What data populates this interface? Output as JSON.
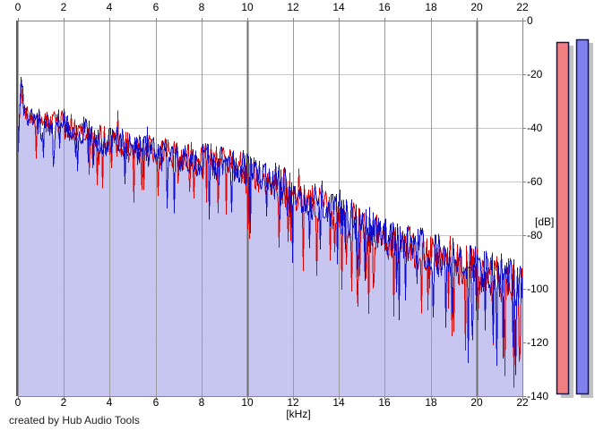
{
  "watermark": "created by Hub Audio Tools",
  "axes": {
    "freq": {
      "unit_label": "[kHz]",
      "min": 0,
      "max": 22,
      "ticks": [
        0,
        2,
        4,
        6,
        8,
        10,
        12,
        14,
        16,
        18,
        20,
        22
      ]
    },
    "level": {
      "unit_label": "[dB]",
      "min": -140,
      "max": 0,
      "ticks": [
        0,
        -20,
        -40,
        -60,
        -80,
        -100,
        -120,
        -140
      ]
    }
  },
  "colors": {
    "fill": "#c6c6f0",
    "trace_left": "#d80000",
    "trace_right": "#0a0ac8",
    "grid_minor_v": "#9a9a9a",
    "grid_major_v": "#6e6e6e",
    "grid_h": "#c8c8c8",
    "frame": "#858585",
    "frame_left": "#5a5a5a",
    "meter_shadow": "#c2c2c2",
    "meter_border": "#16164e",
    "text": "#000000"
  },
  "chart_data": {
    "type": "line",
    "title": "",
    "xlabel": "[kHz]",
    "ylabel": "[dB]",
    "xlim": [
      0,
      22
    ],
    "ylim": [
      -140,
      0
    ],
    "grid": true,
    "layout_hints": {
      "x_gridline_step_khz": 2,
      "y_gridline_step_db": 20,
      "major_x_gridline_every_khz": 10,
      "legend": "none",
      "fill_under_curve": true
    },
    "envelope_khz": [
      0,
      0.1,
      0.3,
      0.6,
      1,
      1.5,
      2,
      2.5,
      3,
      3.5,
      4,
      4.5,
      5,
      5.5,
      6,
      6.5,
      7,
      7.5,
      8,
      8.5,
      9,
      9.5,
      10,
      10.5,
      11,
      11.5,
      12,
      12.5,
      13,
      13.5,
      14,
      14.5,
      15,
      15.5,
      16,
      16.5,
      17,
      17.5,
      18,
      18.5,
      19,
      19.5,
      20,
      20.5,
      21,
      21.5,
      22
    ],
    "series": [
      {
        "name": "left-channel-spectrum",
        "color": "#d80000",
        "envelope_db": [
          -45,
          -26,
          -33,
          -36,
          -38,
          -37,
          -39,
          -41,
          -43,
          -44,
          -46,
          -45,
          -49,
          -47,
          -51,
          -49,
          -52,
          -51,
          -53,
          -52,
          -54,
          -55,
          -56,
          -58,
          -60,
          -62,
          -64,
          -67,
          -69,
          -71,
          -73,
          -75,
          -77,
          -79,
          -81,
          -83,
          -84,
          -86,
          -87,
          -89,
          -90,
          -92,
          -93,
          -95,
          -96,
          -98,
          -100
        ]
      },
      {
        "name": "right-channel-spectrum",
        "color": "#0a0ac8",
        "envelope_db": [
          -44,
          -25,
          -34,
          -35,
          -39,
          -38,
          -38,
          -42,
          -42,
          -45,
          -45,
          -46,
          -48,
          -48,
          -50,
          -50,
          -51,
          -52,
          -52,
          -53,
          -53,
          -54,
          -55,
          -57,
          -59,
          -61,
          -63,
          -66,
          -68,
          -70,
          -72,
          -74,
          -76,
          -78,
          -80,
          -82,
          -83,
          -85,
          -86,
          -88,
          -89,
          -91,
          -92,
          -94,
          -95,
          -97,
          -99
        ]
      }
    ],
    "noise": {
      "seed": 1337,
      "spread_db_min": 5,
      "spread_db_max": 9,
      "notch_prob_min": 0.04,
      "notch_prob_max": 0.14,
      "notch_depth_min": 14,
      "notch_depth_max": 34,
      "peak_prob": 0.05,
      "peak_gain_db": 7
    },
    "meters": [
      {
        "name": "left-peak-meter",
        "value_db": -8,
        "fill": "#f28080"
      },
      {
        "name": "right-peak-meter",
        "value_db": -7,
        "fill": "#8080ee"
      }
    ]
  }
}
